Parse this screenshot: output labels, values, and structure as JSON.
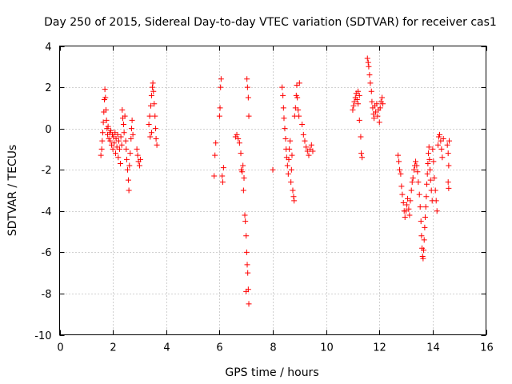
{
  "chart_data": {
    "type": "scatter",
    "title": "Day 250 of 2015, Sidereal Day-to-day VTEC variation (SDTVAR) for receiver cas1",
    "xlabel": "GPS time / hours",
    "ylabel": "SDTVAR / TECUs",
    "xlim": [
      0,
      16
    ],
    "ylim": [
      -10,
      4
    ],
    "xticks": [
      0,
      2,
      4,
      6,
      8,
      10,
      12,
      14,
      16
    ],
    "yticks": [
      -10,
      -8,
      -6,
      -4,
      -2,
      0,
      2,
      4
    ],
    "grid": true,
    "marker": "+",
    "color": "#ff0000",
    "series": [
      {
        "name": "cas1",
        "points": [
          [
            1.55,
            -1.3
          ],
          [
            1.58,
            -1.0
          ],
          [
            1.6,
            -0.6
          ],
          [
            1.62,
            -0.2
          ],
          [
            1.64,
            0.3
          ],
          [
            1.66,
            0.8
          ],
          [
            1.68,
            1.4
          ],
          [
            1.7,
            1.9
          ],
          [
            1.72,
            1.5
          ],
          [
            1.74,
            0.9
          ],
          [
            1.76,
            0.4
          ],
          [
            1.78,
            0.0
          ],
          [
            1.8,
            -0.3
          ],
          [
            1.82,
            0.1
          ],
          [
            1.85,
            -0.5
          ],
          [
            1.88,
            -0.2
          ],
          [
            1.9,
            -0.6
          ],
          [
            1.92,
            -0.1
          ],
          [
            1.95,
            -0.8
          ],
          [
            1.98,
            -0.3
          ],
          [
            2.0,
            -1.0
          ],
          [
            2.02,
            -0.4
          ],
          [
            2.05,
            -0.7
          ],
          [
            2.08,
            -0.2
          ],
          [
            2.1,
            -1.2
          ],
          [
            2.12,
            -0.5
          ],
          [
            2.15,
            -0.9
          ],
          [
            2.18,
            -0.3
          ],
          [
            2.2,
            -1.4
          ],
          [
            2.22,
            -0.6
          ],
          [
            2.25,
            -1.0
          ],
          [
            2.28,
            -1.7
          ],
          [
            2.3,
            -0.4
          ],
          [
            2.33,
            -0.8
          ],
          [
            2.35,
            0.9
          ],
          [
            2.37,
            0.5
          ],
          [
            2.4,
            0.2
          ],
          [
            2.42,
            -0.2
          ],
          [
            2.45,
            0.6
          ],
          [
            2.48,
            -0.6
          ],
          [
            2.5,
            -1.0
          ],
          [
            2.52,
            -1.5
          ],
          [
            2.55,
            -2.0
          ],
          [
            2.58,
            -2.5
          ],
          [
            2.6,
            -3.0
          ],
          [
            2.62,
            -1.8
          ],
          [
            2.65,
            -1.2
          ],
          [
            2.68,
            -0.5
          ],
          [
            2.7,
            0.0
          ],
          [
            2.72,
            0.4
          ],
          [
            2.75,
            -0.3
          ],
          [
            2.9,
            -1.0
          ],
          [
            2.93,
            -1.3
          ],
          [
            2.96,
            -1.6
          ],
          [
            3.0,
            -1.8
          ],
          [
            3.03,
            -1.5
          ],
          [
            3.35,
            0.2
          ],
          [
            3.38,
            0.6
          ],
          [
            3.42,
            1.1
          ],
          [
            3.45,
            1.6
          ],
          [
            3.48,
            2.0
          ],
          [
            3.5,
            2.2
          ],
          [
            3.52,
            1.8
          ],
          [
            3.55,
            1.2
          ],
          [
            3.58,
            0.6
          ],
          [
            3.6,
            0.0
          ],
          [
            3.62,
            -0.5
          ],
          [
            3.65,
            -0.8
          ],
          [
            3.4,
            -0.4
          ],
          [
            3.45,
            -0.2
          ],
          [
            5.8,
            -2.3
          ],
          [
            5.83,
            -1.3
          ],
          [
            5.86,
            -0.7
          ],
          [
            6.0,
            0.6
          ],
          [
            6.02,
            1.0
          ],
          [
            6.04,
            2.0
          ],
          [
            6.06,
            2.4
          ],
          [
            6.1,
            -2.3
          ],
          [
            6.12,
            -2.6
          ],
          [
            6.15,
            -1.9
          ],
          [
            6.6,
            -0.4
          ],
          [
            6.65,
            -0.3
          ],
          [
            6.7,
            -0.5
          ],
          [
            6.75,
            -0.7
          ],
          [
            6.8,
            -1.2
          ],
          [
            6.82,
            -2.0
          ],
          [
            6.85,
            -2.1
          ],
          [
            6.88,
            -1.8
          ],
          [
            6.9,
            -3.0
          ],
          [
            6.92,
            -2.4
          ],
          [
            6.95,
            -4.2
          ],
          [
            6.97,
            -4.5
          ],
          [
            7.0,
            -5.2
          ],
          [
            7.02,
            -6.0
          ],
          [
            7.04,
            -6.6
          ],
          [
            7.06,
            -7.0
          ],
          [
            7.08,
            -7.8
          ],
          [
            7.1,
            -8.5
          ],
          [
            7.03,
            2.4
          ],
          [
            7.05,
            2.0
          ],
          [
            7.08,
            1.5
          ],
          [
            7.1,
            0.6
          ],
          [
            7.0,
            -7.9
          ],
          [
            8.0,
            -2.0
          ],
          [
            8.35,
            2.0
          ],
          [
            8.38,
            1.6
          ],
          [
            8.4,
            1.0
          ],
          [
            8.42,
            0.5
          ],
          [
            8.45,
            0.0
          ],
          [
            8.48,
            -0.5
          ],
          [
            8.5,
            -1.0
          ],
          [
            8.52,
            -1.4
          ],
          [
            8.55,
            -1.8
          ],
          [
            8.58,
            -2.2
          ],
          [
            8.6,
            -1.5
          ],
          [
            8.62,
            -1.0
          ],
          [
            8.65,
            -0.6
          ],
          [
            8.68,
            -2.6
          ],
          [
            8.7,
            -2.0
          ],
          [
            8.72,
            -1.3
          ],
          [
            8.75,
            -3.0
          ],
          [
            8.78,
            -3.3
          ],
          [
            8.8,
            -3.5
          ],
          [
            8.82,
            0.6
          ],
          [
            8.85,
            1.0
          ],
          [
            8.88,
            1.6
          ],
          [
            8.9,
            2.1
          ],
          [
            8.92,
            1.5
          ],
          [
            8.95,
            0.9
          ],
          [
            8.98,
            0.6
          ],
          [
            9.0,
            2.2
          ],
          [
            9.1,
            0.2
          ],
          [
            9.15,
            -0.3
          ],
          [
            9.2,
            -0.6
          ],
          [
            9.25,
            -0.9
          ],
          [
            9.3,
            -1.1
          ],
          [
            9.35,
            -1.3
          ],
          [
            9.4,
            -1.0
          ],
          [
            9.45,
            -0.8
          ],
          [
            9.5,
            -1.1
          ],
          [
            11.0,
            0.9
          ],
          [
            11.03,
            1.1
          ],
          [
            11.06,
            1.3
          ],
          [
            11.1,
            1.5
          ],
          [
            11.13,
            1.7
          ],
          [
            11.16,
            1.4
          ],
          [
            11.2,
            1.2
          ],
          [
            11.25,
            0.4
          ],
          [
            11.3,
            -0.4
          ],
          [
            11.32,
            -1.2
          ],
          [
            11.35,
            -1.4
          ],
          [
            11.2,
            1.8
          ],
          [
            11.25,
            1.6
          ],
          [
            11.55,
            3.4
          ],
          [
            11.58,
            3.2
          ],
          [
            11.6,
            3.0
          ],
          [
            11.63,
            2.6
          ],
          [
            11.66,
            2.2
          ],
          [
            11.7,
            1.8
          ],
          [
            11.72,
            1.3
          ],
          [
            11.75,
            1.0
          ],
          [
            11.78,
            0.7
          ],
          [
            11.8,
            0.5
          ],
          [
            11.83,
            1.1
          ],
          [
            11.86,
            0.8
          ],
          [
            11.9,
            1.2
          ],
          [
            11.93,
            0.6
          ],
          [
            11.96,
            0.9
          ],
          [
            12.0,
            0.3
          ],
          [
            12.03,
            1.0
          ],
          [
            12.06,
            1.3
          ],
          [
            12.1,
            1.5
          ],
          [
            12.13,
            1.2
          ],
          [
            12.7,
            -1.3
          ],
          [
            12.73,
            -1.6
          ],
          [
            12.76,
            -2.0
          ],
          [
            12.8,
            -2.2
          ],
          [
            12.83,
            -2.8
          ],
          [
            12.86,
            -3.2
          ],
          [
            12.9,
            -3.6
          ],
          [
            12.93,
            -4.0
          ],
          [
            12.96,
            -4.3
          ],
          [
            13.0,
            -4.0
          ],
          [
            13.03,
            -3.7
          ],
          [
            13.06,
            -3.4
          ],
          [
            13.1,
            -3.9
          ],
          [
            13.13,
            -4.2
          ],
          [
            13.16,
            -3.5
          ],
          [
            13.2,
            -3.0
          ],
          [
            13.23,
            -2.6
          ],
          [
            13.26,
            -2.4
          ],
          [
            13.3,
            -2.0
          ],
          [
            13.33,
            -1.8
          ],
          [
            13.36,
            -1.6
          ],
          [
            13.4,
            -1.8
          ],
          [
            13.43,
            -2.1
          ],
          [
            13.46,
            -2.6
          ],
          [
            13.5,
            -3.2
          ],
          [
            13.53,
            -3.8
          ],
          [
            13.56,
            -4.5
          ],
          [
            13.58,
            -5.2
          ],
          [
            13.6,
            -5.8
          ],
          [
            13.62,
            -6.2
          ],
          [
            13.64,
            -6.3
          ],
          [
            13.66,
            -5.9
          ],
          [
            13.68,
            -5.4
          ],
          [
            13.7,
            -4.8
          ],
          [
            13.72,
            -4.3
          ],
          [
            13.74,
            -3.8
          ],
          [
            13.76,
            -3.3
          ],
          [
            13.78,
            -2.7
          ],
          [
            13.8,
            -2.2
          ],
          [
            13.82,
            -1.7
          ],
          [
            13.84,
            -1.2
          ],
          [
            13.86,
            -0.9
          ],
          [
            13.88,
            -1.5
          ],
          [
            13.9,
            -2.0
          ],
          [
            13.92,
            -2.5
          ],
          [
            13.95,
            -3.0
          ],
          [
            13.98,
            -3.5
          ],
          [
            14.0,
            -1.0
          ],
          [
            14.03,
            -1.6
          ],
          [
            14.06,
            -2.4
          ],
          [
            14.1,
            -3.0
          ],
          [
            14.13,
            -3.5
          ],
          [
            14.16,
            -4.0
          ],
          [
            14.2,
            -0.8
          ],
          [
            14.23,
            -0.4
          ],
          [
            14.26,
            -0.3
          ],
          [
            14.3,
            -0.6
          ],
          [
            14.33,
            -1.0
          ],
          [
            14.36,
            -1.4
          ],
          [
            14.4,
            -0.5
          ],
          [
            14.55,
            -0.8
          ],
          [
            14.58,
            -1.2
          ],
          [
            14.6,
            -1.8
          ],
          [
            14.58,
            -2.6
          ],
          [
            14.6,
            -2.9
          ],
          [
            14.62,
            -0.6
          ]
        ]
      }
    ]
  }
}
